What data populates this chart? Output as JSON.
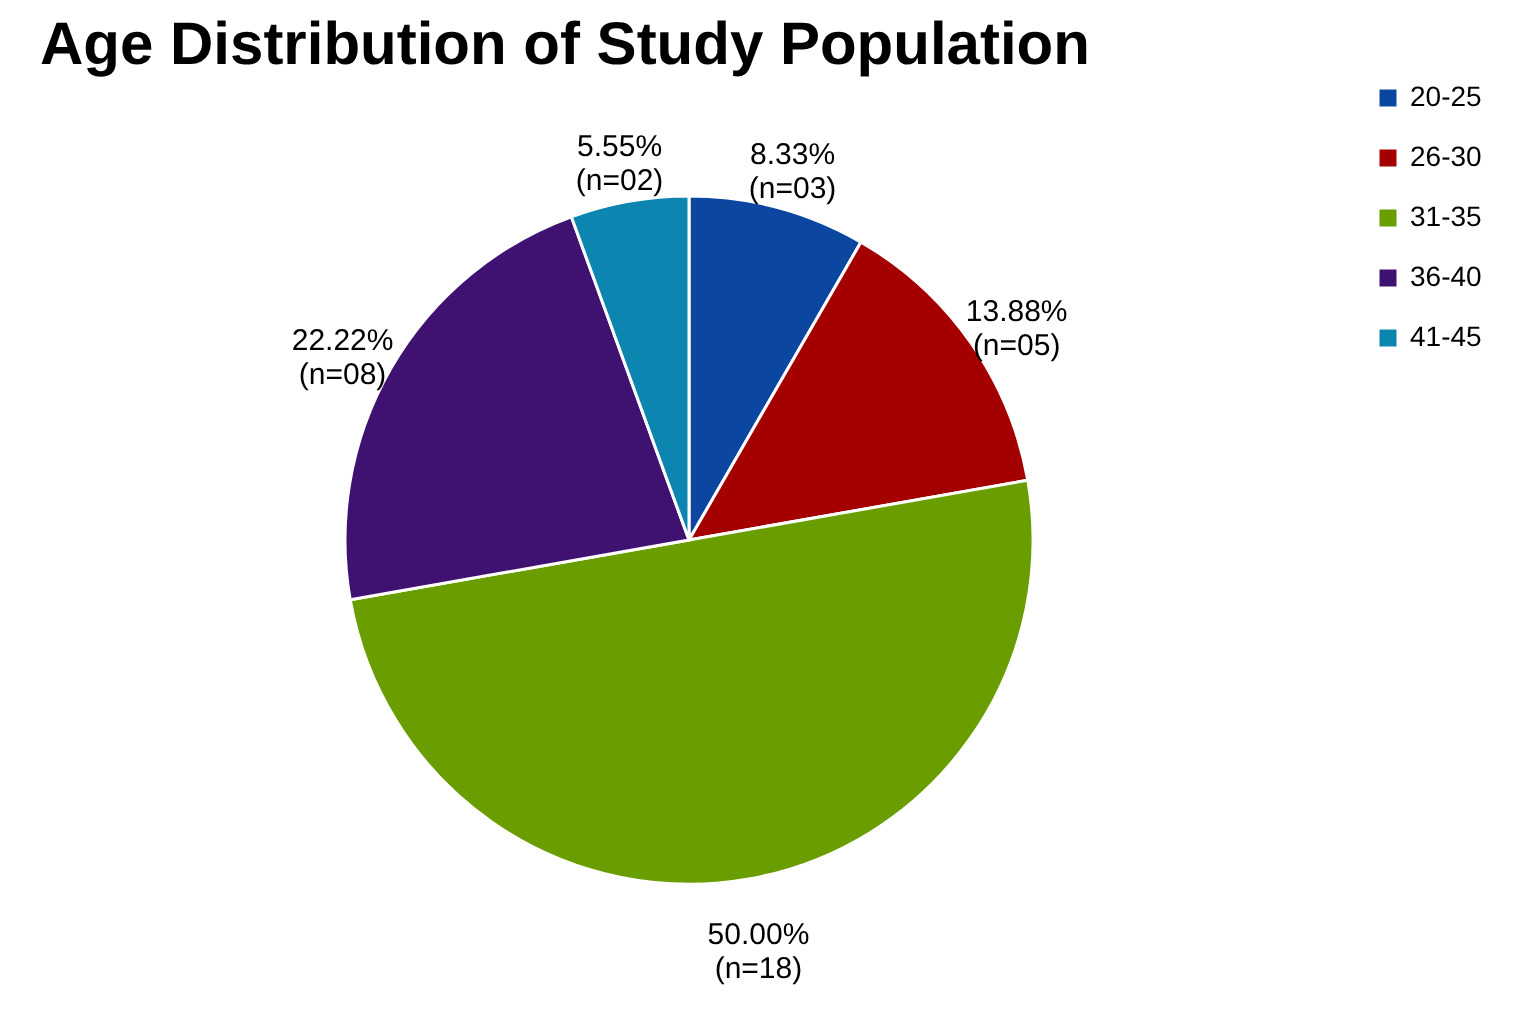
{
  "chart_data": {
    "type": "pie",
    "title": "Age Distribution of Study Population",
    "categories": [
      "20-25",
      "26-30",
      "31-35",
      "36-40",
      "41-45"
    ],
    "values": [
      3,
      5,
      18,
      8,
      2
    ],
    "colors": [
      "#0b47a1",
      "#a40000",
      "#6a9e00",
      "#3f1272",
      "#0c86b0"
    ],
    "value_labels": [
      "8.33%\n(n=03)",
      "13.88%\n(n=05)",
      "50.00%\n(n=18)",
      "22.22%\n(n=08)",
      "5.55%\n(n=02)"
    ],
    "legend": "right"
  }
}
